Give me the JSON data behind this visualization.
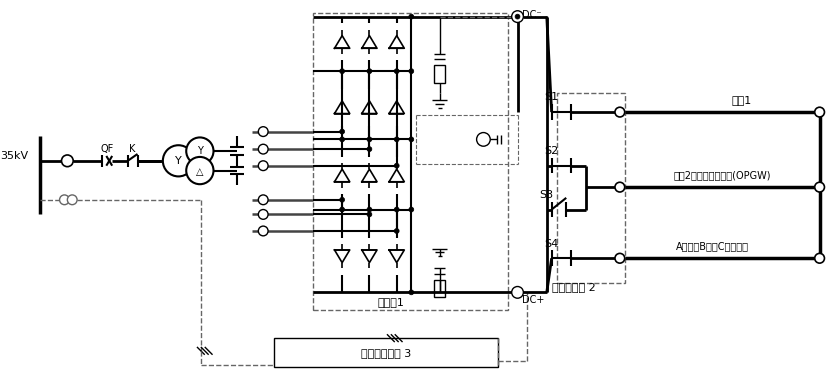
{
  "bg_color": "#ffffff",
  "lc": "#000000",
  "dc": "#666666",
  "fig_w": 8.31,
  "fig_h": 3.84,
  "label_35kV": "35kV",
  "label_QF": "QF",
  "label_K": "K",
  "label_Y1": "Y",
  "label_Y2": "Y",
  "label_delta": "△",
  "label_huanliuqi": "换流器1",
  "label_kongzhi": "控制保护系统 3",
  "label_DC_neg": "DC⁻",
  "label_DC_pos": "DC+",
  "label_S1": "S1",
  "label_S2": "S2",
  "label_S3": "S3",
  "label_S4": "S4",
  "label_dixian1": "地线1",
  "label_dixian2": "地线2或复合架空地线(OPGW)",
  "label_daoxian": "A相（或B相、C相）导线",
  "label_zhiliudao": "直流侧刀间 2"
}
